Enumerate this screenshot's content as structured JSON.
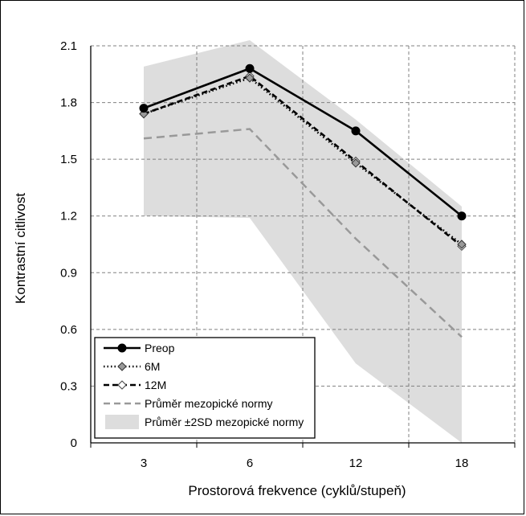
{
  "chart_data": {
    "type": "line",
    "xlabel": "Prostorová frekvence (cyklů/stupeň)",
    "ylabel": "Kontrastní citlivost",
    "categories": [
      "3",
      "6",
      "12",
      "18"
    ],
    "ylim": [
      0,
      2.1
    ],
    "yticks": [
      "0",
      "0.3",
      "0.6",
      "0.9",
      "1.2",
      "1.5",
      "1.8",
      "2.1"
    ],
    "grid": true,
    "legend_position": "bottom-left",
    "series": [
      {
        "name": "Preop",
        "values": [
          1.77,
          1.98,
          1.65,
          1.2
        ],
        "color": "#000000",
        "style": "solid",
        "marker": "filled-circle"
      },
      {
        "name": "6M",
        "values": [
          1.74,
          1.93,
          1.48,
          1.05
        ],
        "color": "#000000",
        "style": "dotted",
        "marker": "gray-diamond"
      },
      {
        "name": "12M",
        "values": [
          1.74,
          1.94,
          1.49,
          1.04
        ],
        "color": "#000000",
        "style": "dashed",
        "marker": "open-diamond"
      },
      {
        "name": "Průměr mezopické normy",
        "values": [
          1.61,
          1.66,
          1.08,
          0.56
        ],
        "color": "#999999",
        "style": "dashed",
        "marker": "none"
      }
    ],
    "band": {
      "name": "Průměr ±2SD mezopické normy",
      "color": "#dddddd",
      "upper": [
        1.99,
        2.13,
        1.71,
        1.25
      ],
      "lower": [
        1.2,
        1.19,
        0.42,
        0.0
      ]
    }
  }
}
